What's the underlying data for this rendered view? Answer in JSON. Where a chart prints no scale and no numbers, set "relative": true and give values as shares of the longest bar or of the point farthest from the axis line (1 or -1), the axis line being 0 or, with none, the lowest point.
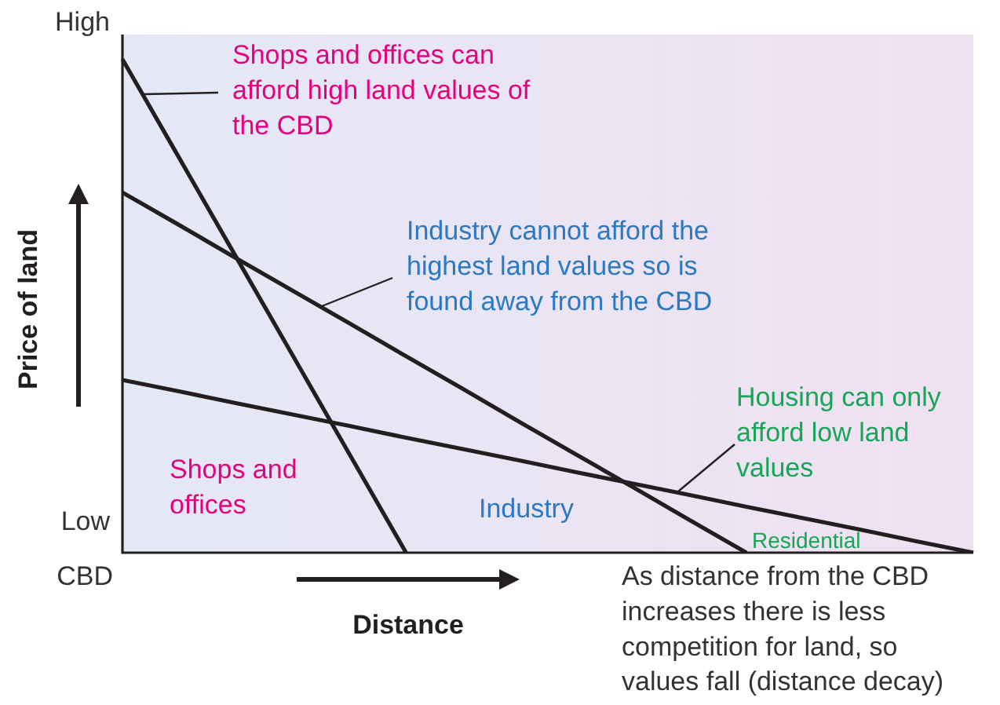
{
  "chart_data": {
    "type": "line",
    "relative": true,
    "xlabel": "Distance",
    "ylabel": "Price of land",
    "categories": [
      null,
      null,
      null,
      null,
      null,
      null,
      null,
      null,
      null,
      null,
      null,
      null,
      null,
      null,
      null,
      null
    ],
    "series": [
      {
        "color": "#231f20",
        "values": [
          1,
          0.8,
          0.6,
          0.4,
          0.2,
          0,
          null,
          null,
          null,
          null,
          null,
          null,
          null,
          null,
          null,
          null
        ]
      },
      {
        "color": "#231f20",
        "values": [
          0.73,
          0.664,
          0.597,
          0.531,
          0.465,
          0.398,
          0.332,
          0.265,
          0.199,
          0.133,
          0.066,
          0,
          null,
          null,
          null,
          null
        ]
      },
      {
        "color": "#231f20",
        "values": [
          0.35,
          0.327,
          0.303,
          0.28,
          0.257,
          0.233,
          0.21,
          0.187,
          0.163,
          0.14,
          0.117,
          0.093,
          0.07,
          0.047,
          0.023,
          0
        ]
      }
    ],
    "annotations": [
      "High",
      "Shops and offices can afford high land values of the CBD",
      "Industry cannot afford the highest land values so is found away from the CBD",
      "Housing can only afford low land values",
      "Shops and offices",
      "Industry",
      "Low",
      "Residential",
      "CBD",
      "As distance from the CBD increases there is less competition for land, so values fall (distance decay)"
    ]
  }
}
